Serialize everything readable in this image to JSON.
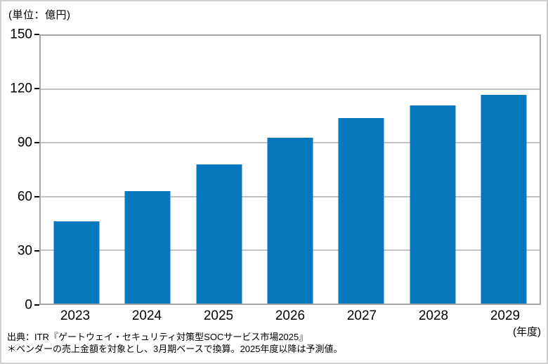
{
  "header": {
    "unit_label": "(単位：億円)"
  },
  "chart_data": {
    "type": "bar",
    "categories": [
      "2023",
      "2024",
      "2025",
      "2026",
      "2027",
      "2028",
      "2029"
    ],
    "values": [
      46,
      63,
      78,
      93,
      104,
      111,
      117
    ],
    "title": "",
    "xlabel": "(年度)",
    "ylabel": "(単位：億円)",
    "ylim": [
      0,
      150
    ],
    "yticks": [
      0,
      30,
      60,
      90,
      120,
      150
    ],
    "grid": true,
    "legend": false,
    "bar_color": "#0878be",
    "gridline_color": "#c3c3c3",
    "plot_border_color": "#a6a6a6",
    "tick_color": "#000000"
  },
  "x_axis": {
    "unit_label": "(年度)"
  },
  "footer": {
    "source": "出典：ITR『ゲートウェイ・セキュリティ対策型SOCサービス市場2025』",
    "note": "＊ベンダーの売上金額を対象とし、3月期ベースで換算。2025年度以降は予測値。"
  }
}
